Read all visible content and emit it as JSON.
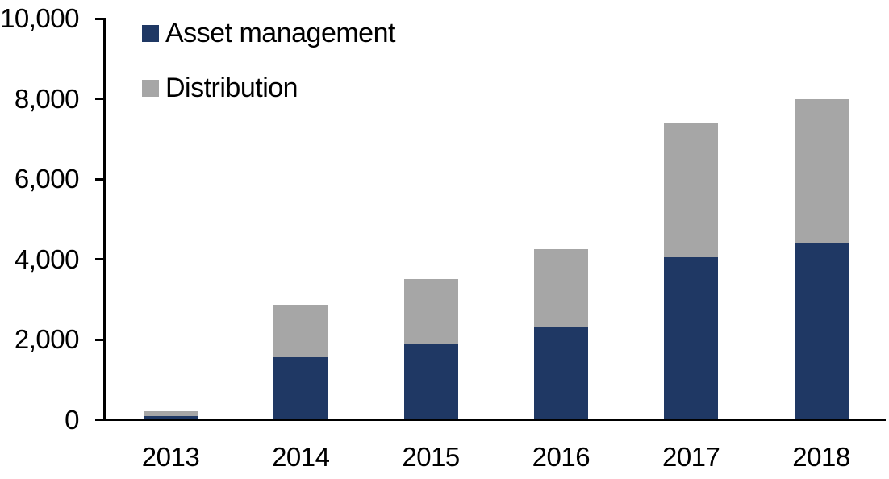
{
  "chart_data": {
    "type": "bar",
    "stacked": true,
    "title": "",
    "xlabel": "",
    "ylabel": "",
    "categories": [
      "2013",
      "2014",
      "2015",
      "2016",
      "2017",
      "2018"
    ],
    "series": [
      {
        "name": "Asset management",
        "color": "#1F3864",
        "values": [
          100,
          1550,
          1880,
          2300,
          4050,
          4420
        ]
      },
      {
        "name": "Distribution",
        "color": "#A6A6A6",
        "values": [
          120,
          1320,
          1620,
          1950,
          3350,
          3580
        ]
      }
    ],
    "totals": [
      220,
      2870,
      3500,
      4250,
      7400,
      8000
    ],
    "ylim": [
      0,
      10000
    ],
    "ytick_interval": 2000,
    "ytick_labels": [
      "0",
      "2,000",
      "4,000",
      "6,000",
      "8,000",
      "10,000"
    ],
    "legend_position": "top-left",
    "grid": false,
    "axis_color": "#000000",
    "background": "#FFFFFF"
  }
}
